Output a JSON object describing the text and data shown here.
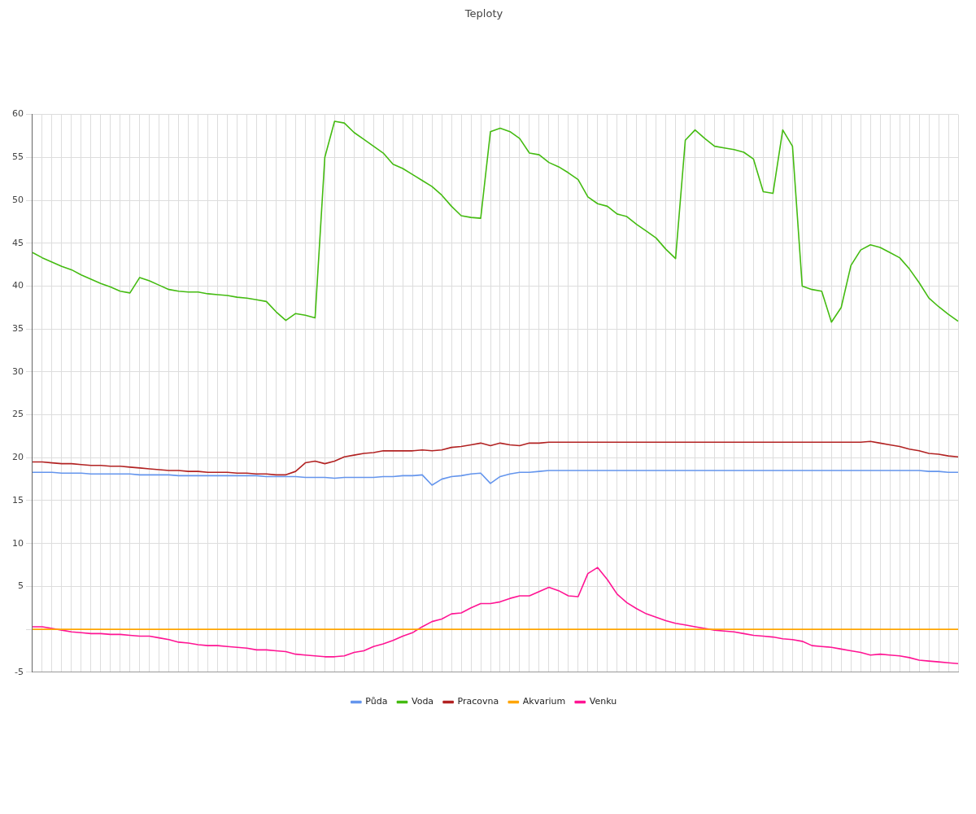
{
  "chart_data": {
    "type": "line",
    "title": "Teploty",
    "categories": [
      null,
      null,
      null,
      null,
      null,
      null,
      null,
      null,
      null,
      null,
      null,
      null,
      null,
      null,
      null,
      null,
      null,
      null,
      null,
      null,
      null,
      null,
      null,
      null,
      null,
      null,
      null,
      null,
      null,
      null,
      null,
      null,
      null,
      null,
      null,
      null,
      null,
      null,
      null,
      null,
      null,
      null,
      null,
      null,
      null,
      null,
      null,
      null,
      null,
      null,
      null,
      null,
      null,
      null,
      null,
      null,
      null,
      null,
      null,
      null,
      null,
      null,
      null,
      null,
      null,
      null,
      null,
      null,
      null,
      null,
      null,
      null,
      null,
      null,
      null,
      null,
      null,
      null,
      null,
      null,
      null,
      null,
      null,
      null,
      null,
      null,
      null,
      null,
      null,
      null,
      null,
      null,
      null,
      null,
      null,
      null
    ],
    "ylim": [
      -5,
      60
    ],
    "yticks": [
      -5,
      {
        "value": 0,
        "label": null
      },
      5,
      10,
      15,
      20,
      25,
      30,
      35,
      40,
      45,
      50,
      55,
      60
    ],
    "grid": true,
    "legend": "bottom",
    "marker": "none",
    "line_style": "solid",
    "series": [
      {
        "name": "Půda",
        "color": "#6495ed",
        "values": [
          18.3,
          18.3,
          18.3,
          18.2,
          18.2,
          18.2,
          18.1,
          18.1,
          18.1,
          18.1,
          18.1,
          18.0,
          18.0,
          18.0,
          18.0,
          17.9,
          17.9,
          17.9,
          17.9,
          17.9,
          17.9,
          17.9,
          17.9,
          17.9,
          17.8,
          17.8,
          17.8,
          17.8,
          17.7,
          17.7,
          17.7,
          17.6,
          17.7,
          17.7,
          17.7,
          17.7,
          17.8,
          17.8,
          17.9,
          17.9,
          18.0,
          16.8,
          17.5,
          17.8,
          17.9,
          18.1,
          18.2,
          17.0,
          17.8,
          18.1,
          18.3,
          18.3,
          18.4,
          18.5,
          18.5,
          18.5,
          18.5,
          18.5,
          18.5,
          18.5,
          18.5,
          18.5,
          18.5,
          18.5,
          18.5,
          18.5,
          18.5,
          18.5,
          18.5,
          18.5,
          18.5,
          18.5,
          18.5,
          18.5,
          18.5,
          18.5,
          18.5,
          18.5,
          18.5,
          18.5,
          18.5,
          18.5,
          18.5,
          18.5,
          18.5,
          18.5,
          18.5,
          18.5,
          18.5,
          18.5,
          18.5,
          18.5,
          18.4,
          18.4,
          18.3,
          18.3
        ]
      },
      {
        "name": "Voda",
        "color": "#44bb11",
        "values": [
          43.9,
          43.3,
          42.8,
          42.3,
          41.9,
          41.3,
          40.8,
          40.3,
          39.9,
          39.4,
          39.2,
          41.0,
          40.6,
          40.1,
          39.6,
          39.4,
          39.3,
          39.3,
          39.1,
          39.0,
          38.9,
          38.7,
          38.6,
          38.4,
          38.2,
          37.0,
          36.0,
          36.8,
          36.6,
          36.3,
          55.0,
          59.2,
          59.0,
          57.9,
          57.1,
          56.3,
          55.5,
          54.2,
          53.7,
          53.0,
          52.3,
          51.6,
          50.6,
          49.3,
          48.2,
          48.0,
          47.9,
          58.0,
          58.4,
          58.0,
          57.2,
          55.5,
          55.3,
          54.4,
          53.9,
          53.2,
          52.4,
          50.4,
          49.6,
          49.3,
          48.4,
          48.1,
          47.2,
          46.4,
          45.6,
          44.3,
          43.2,
          57.0,
          58.2,
          57.2,
          56.3,
          56.1,
          55.9,
          55.6,
          54.8,
          51.0,
          50.8,
          58.2,
          56.3,
          40.0,
          39.6,
          39.4,
          35.8,
          37.5,
          42.4,
          44.2,
          44.8,
          44.5,
          43.9,
          43.3,
          42.0,
          40.4,
          38.6,
          37.6,
          36.7,
          35.9
        ]
      },
      {
        "name": "Pracovna",
        "color": "#b22222",
        "values": [
          19.5,
          19.5,
          19.4,
          19.3,
          19.3,
          19.2,
          19.1,
          19.1,
          19.0,
          19.0,
          18.9,
          18.8,
          18.7,
          18.6,
          18.5,
          18.5,
          18.4,
          18.4,
          18.3,
          18.3,
          18.3,
          18.2,
          18.2,
          18.1,
          18.1,
          18.0,
          18.0,
          18.4,
          19.4,
          19.6,
          19.3,
          19.6,
          20.1,
          20.3,
          20.5,
          20.6,
          20.8,
          20.8,
          20.8,
          20.8,
          20.9,
          20.8,
          20.9,
          21.2,
          21.3,
          21.5,
          21.7,
          21.4,
          21.7,
          21.5,
          21.4,
          21.7,
          21.7,
          21.8,
          21.8,
          21.8,
          21.8,
          21.8,
          21.8,
          21.8,
          21.8,
          21.8,
          21.8,
          21.8,
          21.8,
          21.8,
          21.8,
          21.8,
          21.8,
          21.8,
          21.8,
          21.8,
          21.8,
          21.8,
          21.8,
          21.8,
          21.8,
          21.8,
          21.8,
          21.8,
          21.8,
          21.8,
          21.8,
          21.8,
          21.8,
          21.8,
          21.9,
          21.7,
          21.5,
          21.3,
          21.0,
          20.8,
          20.5,
          20.4,
          20.2,
          20.1
        ]
      },
      {
        "name": "Akvarium",
        "color": "#ffa500",
        "values": [
          0,
          0,
          0,
          0,
          0,
          0,
          0,
          0,
          0,
          0,
          0,
          0,
          0,
          0,
          0,
          0,
          0,
          0,
          0,
          0,
          0,
          0,
          0,
          0,
          0,
          0,
          0,
          0,
          0,
          0,
          0,
          0,
          0,
          0,
          0,
          0,
          0,
          0,
          0,
          0,
          0,
          0,
          0,
          0,
          0,
          0,
          0,
          0,
          0,
          0,
          0,
          0,
          0,
          0,
          0,
          0,
          0,
          0,
          0,
          0,
          0,
          0,
          0,
          0,
          0,
          0,
          0,
          0,
          0,
          0,
          0,
          0,
          0,
          0,
          0,
          0,
          0,
          0,
          0,
          0,
          0,
          0,
          0,
          0,
          0,
          0,
          0,
          0,
          0,
          0,
          0,
          0,
          0,
          0,
          0,
          0
        ]
      },
      {
        "name": "Venku",
        "color": "#ff1493",
        "values": [
          0.3,
          0.3,
          0.1,
          -0.1,
          -0.3,
          -0.4,
          -0.5,
          -0.5,
          -0.6,
          -0.6,
          -0.7,
          -0.8,
          -0.8,
          -1.0,
          -1.2,
          -1.5,
          -1.6,
          -1.8,
          -1.9,
          -1.9,
          -2.0,
          -2.1,
          -2.2,
          -2.4,
          -2.4,
          -2.5,
          -2.6,
          -2.9,
          -3.0,
          -3.1,
          -3.2,
          -3.2,
          -3.1,
          -2.7,
          -2.5,
          -2.0,
          -1.7,
          -1.3,
          -0.8,
          -0.4,
          0.3,
          0.9,
          1.2,
          1.8,
          1.9,
          2.5,
          3.0,
          3.0,
          3.2,
          3.6,
          3.9,
          3.9,
          4.4,
          4.9,
          4.5,
          3.9,
          3.8,
          6.5,
          7.2,
          5.8,
          4.1,
          3.1,
          2.4,
          1.8,
          1.4,
          1.0,
          0.7,
          0.5,
          0.3,
          0.1,
          -0.1,
          -0.2,
          -0.3,
          -0.5,
          -0.7,
          -0.8,
          -0.9,
          -1.1,
          -1.2,
          -1.4,
          -1.9,
          -2.0,
          -2.1,
          -2.3,
          -2.5,
          -2.7,
          -3.0,
          -2.9,
          -3.0,
          -3.1,
          -3.3,
          -3.6,
          -3.7,
          -3.8,
          -3.9,
          -4.0
        ]
      }
    ]
  }
}
